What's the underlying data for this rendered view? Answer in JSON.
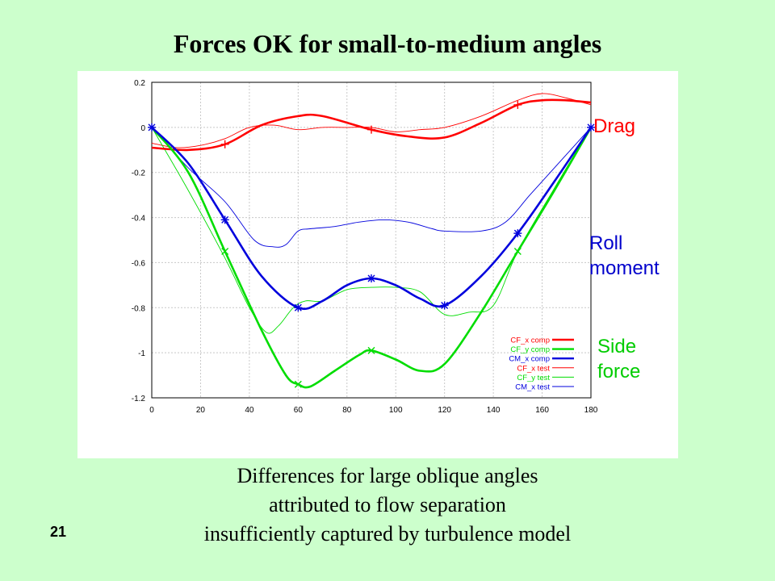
{
  "slide": {
    "title": "Forces OK for small-to-medium angles",
    "caption_lines": [
      "Differences for large oblique angles",
      "attributed to flow separation",
      "insufficiently captured by turbulence model"
    ],
    "slide_number": "21",
    "annotations": {
      "drag": "Drag",
      "roll_line1": "Roll",
      "roll_line2": "moment",
      "side_line1": "Side",
      "side_line2": "force"
    }
  },
  "chart_data": {
    "type": "line",
    "title": "",
    "xlabel": "",
    "ylabel": "",
    "xlim": [
      0,
      180
    ],
    "ylim": [
      -1.2,
      0.2
    ],
    "grid": true,
    "legend_position": "bottom-right",
    "x_ticks": [
      "0",
      "20",
      "40",
      "60",
      "80",
      "100",
      "120",
      "140",
      "160",
      "180"
    ],
    "y_ticks": [
      "0.2",
      "0",
      "-0.2",
      "-0.4",
      "-0.6",
      "-0.8",
      "-1",
      "-1.2"
    ],
    "series": [
      {
        "name": "CF_x comp",
        "color": "#ff0000",
        "style": "thick",
        "marker": "+",
        "marker_x": [
          30,
          90,
          150
        ],
        "points": [
          [
            0,
            -0.09
          ],
          [
            15,
            -0.1
          ],
          [
            30,
            -0.075
          ],
          [
            45,
            0.01
          ],
          [
            60,
            0.05
          ],
          [
            70,
            0.05
          ],
          [
            90,
            -0.01
          ],
          [
            105,
            -0.04
          ],
          [
            120,
            -0.045
          ],
          [
            135,
            0.02
          ],
          [
            150,
            0.1
          ],
          [
            160,
            0.12
          ],
          [
            170,
            0.12
          ],
          [
            180,
            0.11
          ]
        ]
      },
      {
        "name": "CF_y comp",
        "color": "#00dd00",
        "style": "thick",
        "marker": "x",
        "marker_x": [
          30,
          60,
          90,
          150
        ],
        "points": [
          [
            0,
            0.0
          ],
          [
            15,
            -0.2
          ],
          [
            30,
            -0.55
          ],
          [
            45,
            -0.9
          ],
          [
            55,
            -1.1
          ],
          [
            60,
            -1.14
          ],
          [
            65,
            -1.15
          ],
          [
            75,
            -1.08
          ],
          [
            85,
            -1.01
          ],
          [
            90,
            -0.99
          ],
          [
            100,
            -1.03
          ],
          [
            110,
            -1.08
          ],
          [
            120,
            -1.05
          ],
          [
            135,
            -0.82
          ],
          [
            150,
            -0.55
          ],
          [
            165,
            -0.28
          ],
          [
            180,
            0.0
          ]
        ]
      },
      {
        "name": "CM_x comp",
        "color": "#0000dd",
        "style": "thick",
        "marker": "*",
        "marker_x": [
          0,
          30,
          60,
          90,
          120,
          150,
          180
        ],
        "points": [
          [
            0,
            0.0
          ],
          [
            15,
            -0.16
          ],
          [
            30,
            -0.41
          ],
          [
            45,
            -0.66
          ],
          [
            60,
            -0.8
          ],
          [
            70,
            -0.77
          ],
          [
            80,
            -0.7
          ],
          [
            90,
            -0.67
          ],
          [
            100,
            -0.7
          ],
          [
            110,
            -0.76
          ],
          [
            120,
            -0.79
          ],
          [
            135,
            -0.66
          ],
          [
            150,
            -0.47
          ],
          [
            165,
            -0.24
          ],
          [
            180,
            0.0
          ]
        ]
      },
      {
        "name": "CF_x test",
        "color": "#ff0000",
        "style": "thin",
        "points": [
          [
            0,
            -0.07
          ],
          [
            10,
            -0.09
          ],
          [
            20,
            -0.08
          ],
          [
            30,
            -0.05
          ],
          [
            40,
            0.0
          ],
          [
            50,
            0.01
          ],
          [
            60,
            -0.01
          ],
          [
            70,
            0.0
          ],
          [
            80,
            0.0
          ],
          [
            90,
            0.0
          ],
          [
            100,
            -0.02
          ],
          [
            110,
            -0.01
          ],
          [
            120,
            0.0
          ],
          [
            135,
            0.05
          ],
          [
            150,
            0.12
          ],
          [
            160,
            0.15
          ],
          [
            170,
            0.13
          ],
          [
            180,
            0.1
          ]
        ]
      },
      {
        "name": "CF_y test",
        "color": "#00dd00",
        "style": "thin",
        "points": [
          [
            0,
            0.0
          ],
          [
            15,
            -0.28
          ],
          [
            30,
            -0.58
          ],
          [
            40,
            -0.8
          ],
          [
            47,
            -0.91
          ],
          [
            52,
            -0.88
          ],
          [
            58,
            -0.8
          ],
          [
            63,
            -0.77
          ],
          [
            70,
            -0.77
          ],
          [
            80,
            -0.72
          ],
          [
            90,
            -0.71
          ],
          [
            100,
            -0.71
          ],
          [
            110,
            -0.73
          ],
          [
            120,
            -0.83
          ],
          [
            130,
            -0.82
          ],
          [
            140,
            -0.79
          ],
          [
            150,
            -0.55
          ],
          [
            165,
            -0.27
          ],
          [
            180,
            0.0
          ]
        ]
      },
      {
        "name": "CM_x test",
        "color": "#0000dd",
        "style": "thin",
        "points": [
          [
            0,
            0.0
          ],
          [
            15,
            -0.18
          ],
          [
            30,
            -0.33
          ],
          [
            42,
            -0.5
          ],
          [
            50,
            -0.53
          ],
          [
            55,
            -0.52
          ],
          [
            60,
            -0.46
          ],
          [
            65,
            -0.45
          ],
          [
            75,
            -0.44
          ],
          [
            85,
            -0.42
          ],
          [
            95,
            -0.41
          ],
          [
            105,
            -0.42
          ],
          [
            115,
            -0.45
          ],
          [
            120,
            -0.46
          ],
          [
            135,
            -0.46
          ],
          [
            145,
            -0.42
          ],
          [
            155,
            -0.3
          ],
          [
            165,
            -0.18
          ],
          [
            180,
            0.0
          ]
        ]
      }
    ]
  }
}
